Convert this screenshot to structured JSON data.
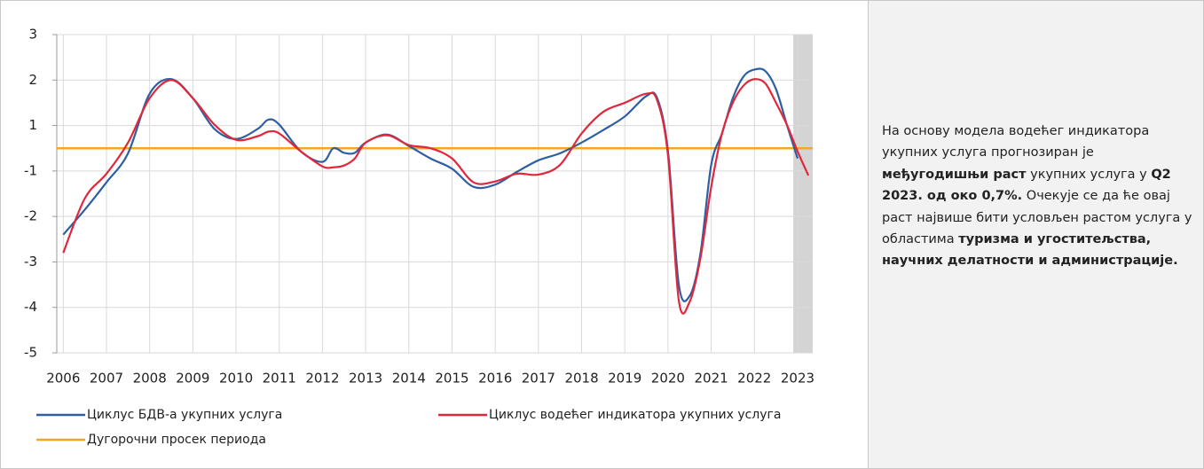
{
  "chart_data": {
    "type": "line",
    "x": [
      2006,
      2006.5,
      2007,
      2007.5,
      2008,
      2008.5,
      2009,
      2009.5,
      2010,
      2010.5,
      2010.75,
      2011,
      2011.5,
      2012,
      2012.25,
      2012.5,
      2012.75,
      2013,
      2013.5,
      2014,
      2014.5,
      2015,
      2015.5,
      2016,
      2016.5,
      2017,
      2017.5,
      2018,
      2018.5,
      2019,
      2019.5,
      2019.75,
      2020,
      2020.25,
      2020.5,
      2020.75,
      2021,
      2021.25,
      2021.5,
      2021.75,
      2022,
      2022.25,
      2022.5,
      2022.75,
      2023,
      2023.25
    ],
    "series": [
      {
        "name": "Циклус БДВ-а укупних услуга",
        "color": "#2e5fa3",
        "values": [
          -2.4,
          -1.85,
          -1.25,
          -0.22,
          1.7,
          2.02,
          1.6,
          0.85,
          0.41,
          0.85,
          1.13,
          1.02,
          -0.14,
          -0.6,
          0,
          -0.2,
          -0.2,
          0.25,
          0.6,
          0.1,
          -0.45,
          -0.9,
          -1.35,
          -1.3,
          -1.02,
          -0.53,
          -0.22,
          0.25,
          0.8,
          1.2,
          1.65,
          1.6,
          -0.14,
          -3.5,
          -3.75,
          -2.82,
          -0.73,
          0.65,
          1.6,
          2.08,
          2.23,
          2.2,
          1.8,
          1.02,
          -0.45,
          null
        ]
      },
      {
        "name": "Циклус водећег индикатора укупних услуга",
        "color": "#e0283c",
        "values": [
          -2.8,
          -1.6,
          -1.06,
          0.25,
          1.6,
          2.0,
          1.6,
          1.02,
          0.37,
          0.53,
          0.73,
          0.65,
          -0.14,
          -0.8,
          -0.84,
          -0.76,
          -0.45,
          0.25,
          0.57,
          0.14,
          0,
          -0.45,
          -1.25,
          -1.23,
          -1.06,
          -1.08,
          -0.73,
          0.65,
          1.3,
          1.5,
          1.7,
          1.55,
          -0.33,
          -3.85,
          -3.88,
          -2.92,
          -1.35,
          0.65,
          1.5,
          1.88,
          2.02,
          1.93,
          1.5,
          1.02,
          -0.14,
          -1.1
        ]
      }
    ],
    "reference_line": {
      "name": "Дугорочни просек периода",
      "color": "#f5a623",
      "value": 0
    },
    "shade_x": [
      2022.9,
      2023.35
    ],
    "xlim": [
      2005.85,
      2023.35
    ],
    "xticks": [
      2006,
      2007,
      2008,
      2009,
      2010,
      2011,
      2012,
      2013,
      2014,
      2015,
      2016,
      2017,
      2018,
      2019,
      2020,
      2021,
      2022,
      2023
    ],
    "ylim": [
      -5,
      3
    ],
    "yticks": [
      3,
      2,
      1,
      -1,
      -2,
      -3,
      -4,
      -5
    ],
    "grid": true
  },
  "note": {
    "runs": [
      {
        "text": "На основу модела водећег индикатора укупних услуга прогнозиран је ",
        "bold": false
      },
      {
        "text": "међугодишњи раст",
        "bold": true
      },
      {
        "text": " укупних услуга у ",
        "bold": false
      },
      {
        "text": "Q2 2023. од око 0,7%.",
        "bold": true
      },
      {
        "text": " Очекује се да ће овај раст највише бити условљен растом услуга у областима ",
        "bold": false
      },
      {
        "text": "туризма и угоститељства, научних делатности и администрације.",
        "bold": true
      }
    ]
  }
}
